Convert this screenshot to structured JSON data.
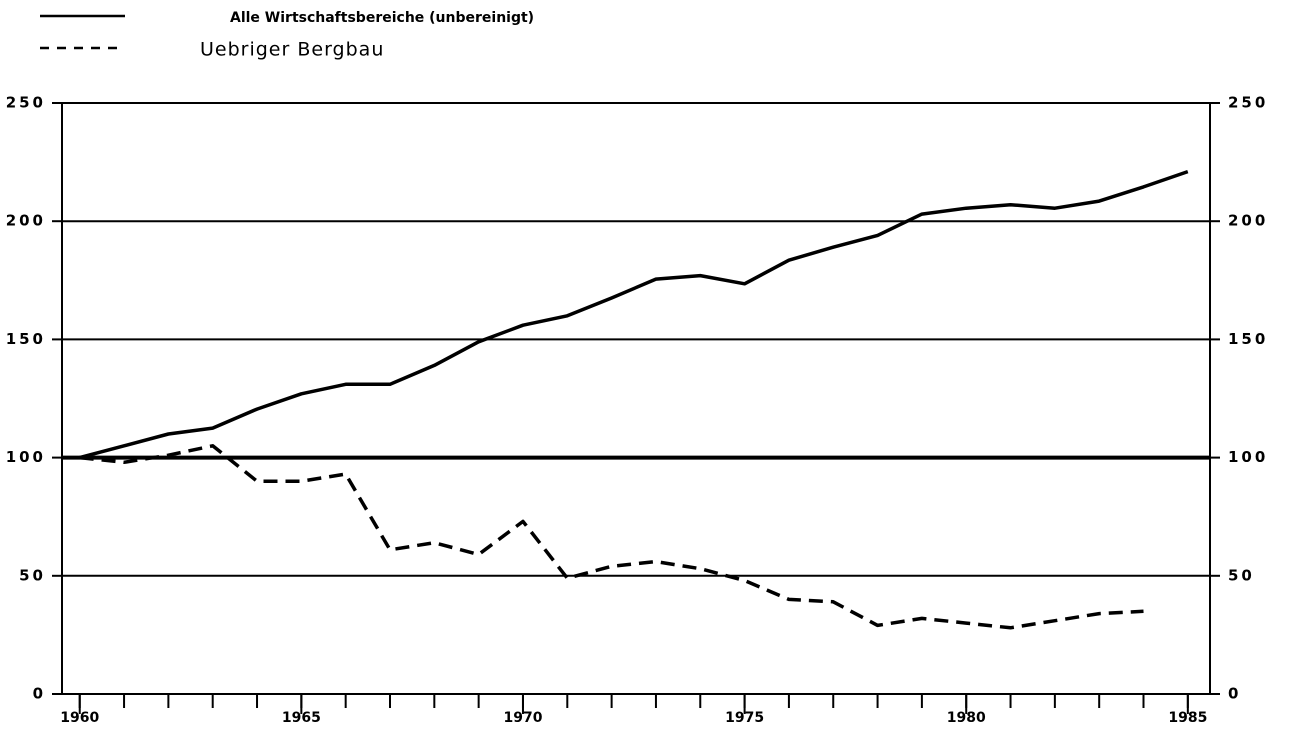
{
  "chart_data": {
    "type": "line",
    "x": [
      1960,
      1961,
      1962,
      1963,
      1964,
      1965,
      1966,
      1967,
      1968,
      1969,
      1970,
      1971,
      1972,
      1973,
      1974,
      1975,
      1976,
      1977,
      1978,
      1979,
      1980,
      1981,
      1982,
      1983,
      1984,
      1985
    ],
    "series": [
      {
        "name": "Alle Wirtschaftsbereiche (unbereinigt)",
        "color": "#000000",
        "dash": false,
        "values": [
          100,
          105,
          110,
          112.5,
          120.5,
          127,
          131,
          131,
          139,
          149,
          156,
          160,
          167.5,
          175.5,
          177,
          173.5,
          183.5,
          189,
          194,
          203,
          205.5,
          207,
          205.5,
          208.5,
          214.5,
          221
        ]
      },
      {
        "name": "Uebriger Bergbau",
        "color": "#000000",
        "dash": true,
        "values": [
          100,
          98,
          101,
          105,
          90,
          90,
          93,
          61,
          64,
          59,
          73,
          49,
          54,
          56,
          53,
          48,
          40,
          39,
          29,
          32,
          30,
          28,
          31,
          34,
          35,
          null
        ]
      }
    ],
    "xlim": [
      1959.6,
      1985.5
    ],
    "xticks": [
      1960,
      1965,
      1970,
      1975,
      1980,
      1985
    ],
    "ylim": [
      0,
      250
    ],
    "yticks": [
      0,
      50,
      100,
      150,
      200,
      250
    ],
    "y2lim": [
      0,
      250
    ],
    "y2ticks": [
      0,
      50,
      100,
      150,
      200,
      250
    ],
    "grid": true,
    "hline": 100,
    "legend": "top-left"
  }
}
